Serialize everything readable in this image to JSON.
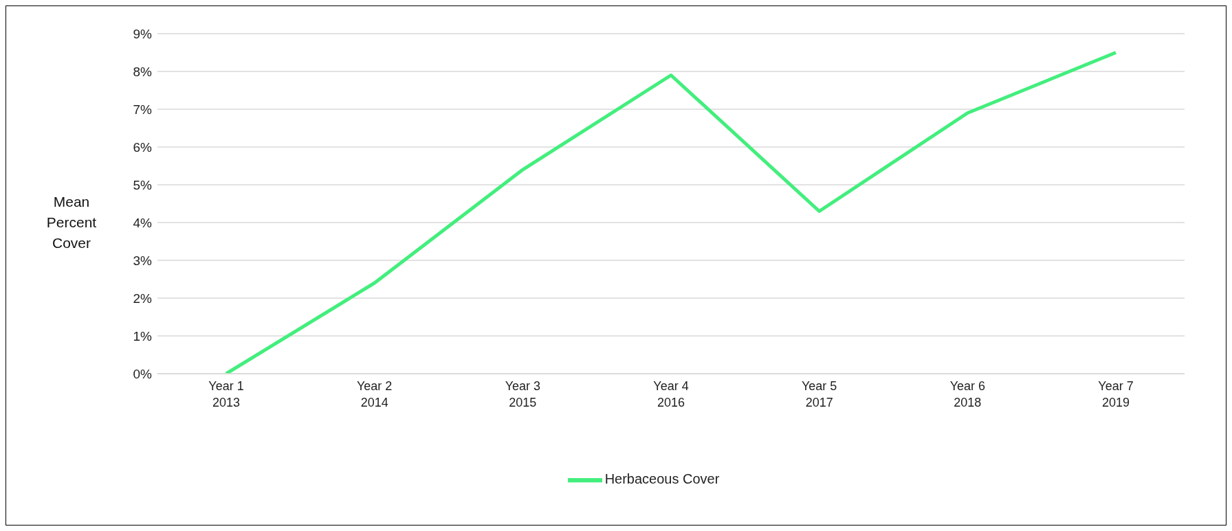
{
  "chart_data": {
    "type": "line",
    "ylabel": "Mean\nPercent\nCover",
    "categories": [
      "Year 1\n2013",
      "Year 2\n2014",
      "Year 3\n2015",
      "Year 4\n2016",
      "Year 5\n2017",
      "Year 6\n2018",
      "Year 7\n2019"
    ],
    "series": [
      {
        "name": "Herbaceous Cover",
        "color": "#43ee7d",
        "values": [
          0,
          2.4,
          5.4,
          7.9,
          4.3,
          6.9,
          8.5
        ]
      }
    ],
    "ylim": [
      0,
      9
    ],
    "yticks": [
      {
        "value": 0,
        "label": "0%"
      },
      {
        "value": 1,
        "label": "1%"
      },
      {
        "value": 2,
        "label": "2%"
      },
      {
        "value": 3,
        "label": "3%"
      },
      {
        "value": 4,
        "label": "4%"
      },
      {
        "value": 5,
        "label": "5%"
      },
      {
        "value": 6,
        "label": "6%"
      },
      {
        "value": 7,
        "label": "7%"
      },
      {
        "value": 8,
        "label": "8%"
      },
      {
        "value": 9,
        "label": "9%"
      }
    ],
    "grid": "y",
    "legend": "bottom",
    "marker": "none",
    "line_style": "solid"
  }
}
